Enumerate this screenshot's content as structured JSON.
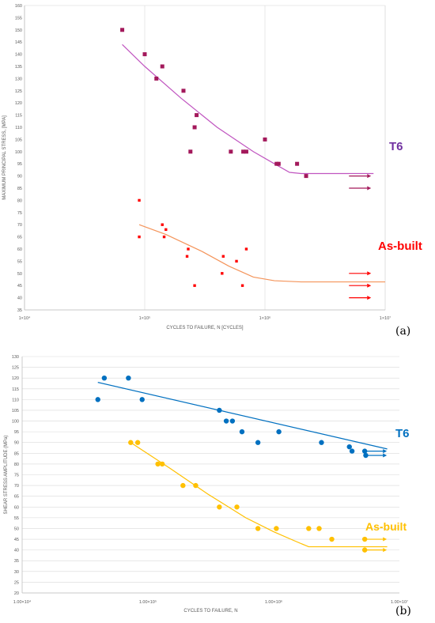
{
  "chart_data": [
    {
      "type": "scatter",
      "panel_label": "(a)",
      "xlabel": "CYCLES TO FAILURE, N [CYCLES]",
      "ylabel": "MAXIMUM PRINCIPAL STRESS, [MPA]",
      "xscale": "log",
      "xlim": [
        10000,
        10000000
      ],
      "ylim": [
        35,
        160
      ],
      "ytick_step": 5,
      "xticks": [
        {
          "value": 10000,
          "label": "1×10⁴"
        },
        {
          "value": 100000,
          "label": "1×10⁵"
        },
        {
          "value": 1000000,
          "label": "1×10⁶"
        },
        {
          "value": 10000000,
          "label": "1×10⁷"
        }
      ],
      "grid": "vertical",
      "series": [
        {
          "name": "T6",
          "color": "#a3195b",
          "label_color": "#7030a0",
          "fit_color": "#c055c0",
          "marker": "square",
          "points": [
            [
              65000,
              150
            ],
            [
              100000,
              140
            ],
            [
              140000,
              135
            ],
            [
              125000,
              130
            ],
            [
              210000,
              125
            ],
            [
              270000,
              115
            ],
            [
              260000,
              110
            ],
            [
              240000,
              100
            ],
            [
              520000,
              100
            ],
            [
              660000,
              100
            ],
            [
              700000,
              100
            ],
            [
              1000000,
              105
            ],
            [
              1250000,
              95
            ],
            [
              1300000,
              95
            ],
            [
              1850000,
              95
            ],
            [
              2200000,
              90
            ]
          ],
          "runouts": [
            [
              5000000,
              90
            ],
            [
              5000000,
              85
            ]
          ],
          "fit": [
            [
              65000,
              144
            ],
            [
              100000,
              135
            ],
            [
              200000,
              122
            ],
            [
              400000,
              110
            ],
            [
              800000,
              100
            ],
            [
              1200000,
              95
            ],
            [
              1600000,
              91.5
            ],
            [
              2000000,
              91
            ],
            [
              8000000,
              91
            ]
          ]
        },
        {
          "name": "As-built",
          "color": "#ff0000",
          "label_color": "#ff0000",
          "fit_color": "#f4945a",
          "marker": "square",
          "points": [
            [
              90000,
              80
            ],
            [
              90000,
              65
            ],
            [
              140000,
              70
            ],
            [
              145000,
              65
            ],
            [
              150000,
              68
            ],
            [
              230000,
              60
            ],
            [
              225000,
              57
            ],
            [
              260000,
              45
            ],
            [
              450000,
              57
            ],
            [
              440000,
              50
            ],
            [
              580000,
              55
            ],
            [
              650000,
              45
            ],
            [
              700000,
              60
            ]
          ],
          "runouts": [
            [
              5000000,
              50
            ],
            [
              5000000,
              45
            ],
            [
              5000000,
              40
            ]
          ],
          "fit": [
            [
              90000,
              70
            ],
            [
              150000,
              66
            ],
            [
              300000,
              59
            ],
            [
              500000,
              53
            ],
            [
              800000,
              48.5
            ],
            [
              1200000,
              47
            ],
            [
              2000000,
              46.5
            ],
            [
              10000000,
              46.5
            ]
          ]
        }
      ]
    },
    {
      "type": "scatter",
      "panel_label": "(b)",
      "xlabel": "CYCLES TO FAILURE, N",
      "ylabel": "SHEAR STRESS AMPLITUDE (MPa)",
      "xscale": "log",
      "xlim": [
        10000,
        10000000
      ],
      "ylim": [
        20,
        130
      ],
      "ytick_step": 5,
      "xticks": [
        {
          "value": 10000,
          "label": "1.00×10⁴"
        },
        {
          "value": 100000,
          "label": "1.00×10⁵"
        },
        {
          "value": 1000000,
          "label": "1.00×10⁶"
        },
        {
          "value": 10000000,
          "label": "1.00×10⁷"
        }
      ],
      "grid": "horizontal",
      "series": [
        {
          "name": "T6",
          "color": "#0070c0",
          "label_color": "#0070c0",
          "fit_color": "#0070c0",
          "marker": "circle",
          "points": [
            [
              40000,
              110
            ],
            [
              45000,
              120
            ],
            [
              70000,
              120
            ],
            [
              90000,
              110
            ],
            [
              370000,
              105
            ],
            [
              420000,
              100
            ],
            [
              470000,
              100
            ],
            [
              560000,
              95
            ],
            [
              750000,
              90
            ],
            [
              1100000,
              95
            ],
            [
              2400000,
              90
            ],
            [
              4000000,
              88
            ],
            [
              4200000,
              86
            ],
            [
              5300000,
              86
            ],
            [
              5400000,
              84
            ]
          ],
          "runouts": [
            [
              5300000,
              86
            ],
            [
              5300000,
              84
            ]
          ],
          "fit": [
            [
              40000,
              118
            ],
            [
              8000000,
              87
            ]
          ]
        },
        {
          "name": "As-built",
          "color": "#ffc000",
          "label_color": "#ffc000",
          "fit_color": "#ffc000",
          "marker": "circle",
          "points": [
            [
              73000,
              90
            ],
            [
              83000,
              90
            ],
            [
              120000,
              80
            ],
            [
              130000,
              80
            ],
            [
              190000,
              70
            ],
            [
              240000,
              70
            ],
            [
              370000,
              60
            ],
            [
              510000,
              60
            ],
            [
              750000,
              50
            ],
            [
              1050000,
              50
            ],
            [
              1900000,
              50
            ],
            [
              2300000,
              50
            ],
            [
              2900000,
              45
            ],
            [
              5300000,
              45
            ],
            [
              5300000,
              40
            ]
          ],
          "runouts": [
            [
              5300000,
              45
            ],
            [
              5300000,
              40
            ]
          ],
          "fit": [
            [
              73000,
              90
            ],
            [
              150000,
              78
            ],
            [
              300000,
              66
            ],
            [
              600000,
              55
            ],
            [
              1000000,
              48.5
            ],
            [
              1500000,
              44
            ],
            [
              1900000,
              41.5
            ],
            [
              8000000,
              41.5
            ]
          ]
        }
      ]
    }
  ]
}
